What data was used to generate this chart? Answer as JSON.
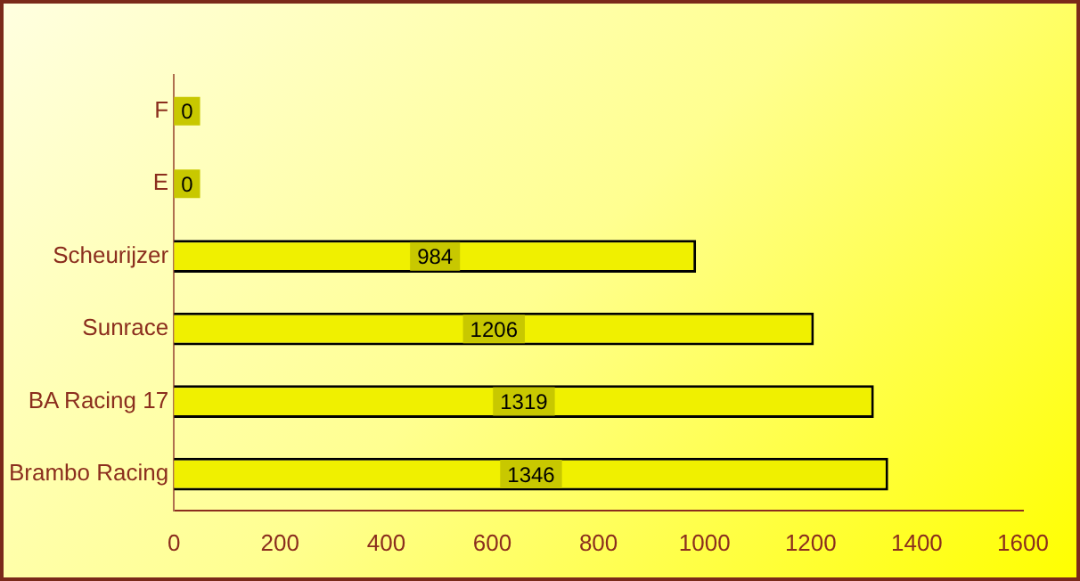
{
  "chart_data": {
    "type": "bar",
    "orientation": "horizontal",
    "categories": [
      "F",
      "E",
      "Scheurijzer",
      "Sunrace",
      "BA Racing 17",
      "Brambo Racing"
    ],
    "values": [
      0,
      0,
      984,
      1206,
      1319,
      1346
    ],
    "color": "#f0f000",
    "xlim": [
      0,
      1600
    ],
    "xticks": [
      0,
      200,
      400,
      600,
      800,
      1000,
      1200,
      1400,
      1600
    ],
    "grid": false,
    "legend": false,
    "data_labels": true
  }
}
